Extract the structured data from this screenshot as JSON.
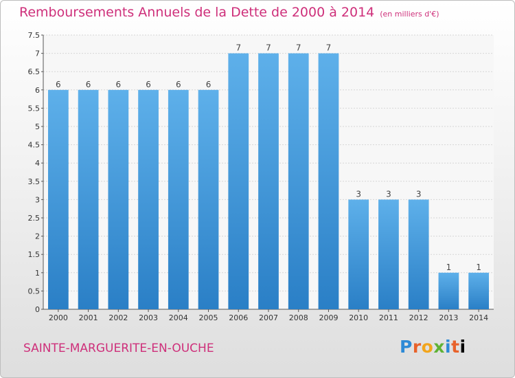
{
  "title": "Remboursements Annuels de la Dette de 2000 à 2014",
  "unit_note": "(en milliers d'€)",
  "commune": "SAINTE-MARGUERITE-EN-OUCHE",
  "logo_letters": [
    "P",
    "r",
    "o",
    "x",
    "i",
    "t",
    "i"
  ],
  "colors": {
    "title": "#ce2f7a",
    "bar_light": "#5eb0ea",
    "bar_dark": "#2a7fc6"
  },
  "chart_data": {
    "type": "bar",
    "title": "Remboursements Annuels de la Dette de 2000 à 2014",
    "ylabel": "",
    "xlabel": "",
    "categories": [
      "2000",
      "2001",
      "2002",
      "2003",
      "2004",
      "2005",
      "2006",
      "2007",
      "2008",
      "2009",
      "2010",
      "2011",
      "2012",
      "2013",
      "2014"
    ],
    "values": [
      6,
      6,
      6,
      6,
      6,
      6,
      7,
      7,
      7,
      7,
      3,
      3,
      3,
      1,
      1
    ],
    "ylim": [
      0,
      7.5
    ],
    "yticks": [
      "0",
      "0.5",
      "1",
      "1.5",
      "2",
      "2.5",
      "3",
      "3.5",
      "4",
      "4.5",
      "5",
      "5.5",
      "6",
      "6.5",
      "7",
      "7.5"
    ],
    "grid": true,
    "data_labels": true
  }
}
